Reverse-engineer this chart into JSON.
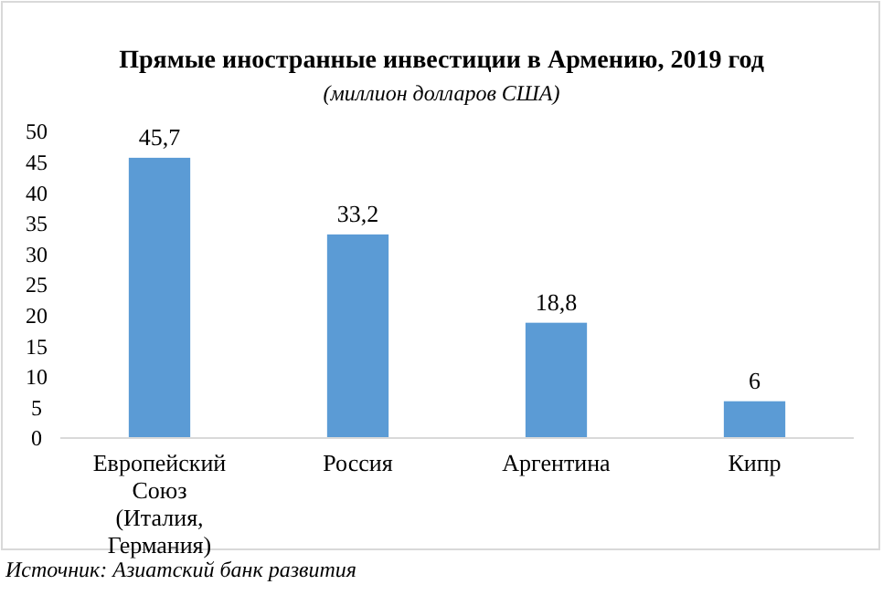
{
  "chart_data": {
    "type": "bar",
    "title": "Прямые иностранные инвестиции в Армению, 2019 год",
    "subtitle": "(миллион долларов США)",
    "categories": [
      "Европейский Союз (Италия, Германия)",
      "Россия",
      "Аргентина",
      "Кипр"
    ],
    "values": [
      45.7,
      33.2,
      18.8,
      6
    ],
    "color": "#5b9bd5",
    "value_labels": [
      "45,7",
      "33,2",
      "18,8",
      "6"
    ],
    "ylim": [
      0,
      50
    ],
    "yticks": [
      0,
      5,
      10,
      15,
      20,
      25,
      30,
      35,
      40,
      45,
      50
    ],
    "grid": false,
    "annotations": [
      "Источник: Азиатский банк развития"
    ]
  }
}
